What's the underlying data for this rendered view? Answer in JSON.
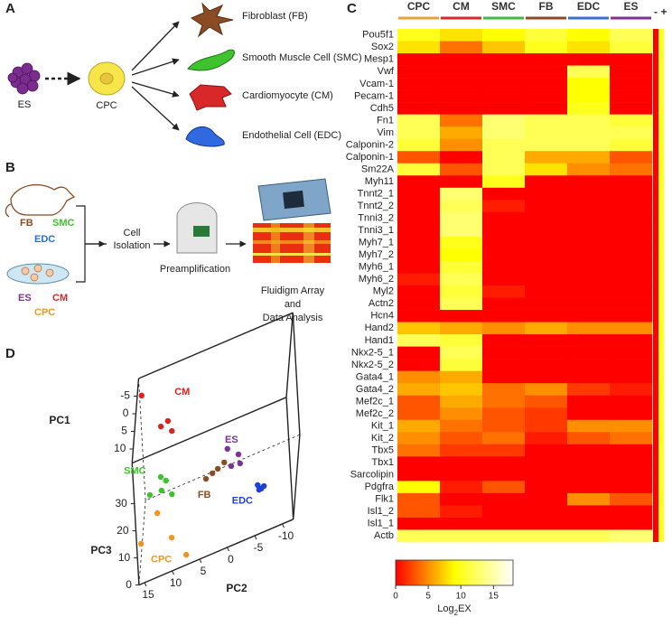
{
  "panels": {
    "a": "A",
    "b": "B",
    "c": "C",
    "d": "D"
  },
  "lineage": {
    "source": "ES",
    "progenitor": "CPC",
    "targets": [
      "Fibroblast (FB)",
      "Smooth Muscle Cell (SMC)",
      "Cardiomyocyte (CM)",
      "Endothelial Cell (EDC)"
    ]
  },
  "workflow": {
    "tissue_cells": [
      "FB",
      "SMC",
      "EDC"
    ],
    "cultured_cells": [
      "ES",
      "CM",
      "CPC"
    ],
    "step1": [
      "Cell",
      "Isolation"
    ],
    "step2": "Preamplification",
    "step3": [
      "Fluidigm Array",
      "and",
      "Data Analysis"
    ]
  },
  "chart_data": [
    {
      "type": "heatmap",
      "categories": [
        "Pou5f1",
        "Sox2",
        "Mesp1",
        "Vwf",
        "Vcam-1",
        "Pecam-1",
        "Cdh5",
        "Fn1",
        "Vim",
        "Calponin-2",
        "Calponin-1",
        "Sm22A",
        "Myh11",
        "Tnnt2_1",
        "Tnnt2_2",
        "Tnni3_2",
        "Tnni3_1",
        "Myh7_1",
        "Myh7_2",
        "Myh6_1",
        "Myh6_2",
        "Myl2",
        "Actn2",
        "Hcn4",
        "Hand2",
        "Hand1",
        "Nkx2-5_1",
        "Nkx2-5_2",
        "Gata4_1",
        "Gata4_2",
        "Mef2c_1",
        "Mef2c_2",
        "Kit_1",
        "Kit_2",
        "Tbx5",
        "Tbx1",
        "Sarcolipin",
        "Pdgfra",
        "Flk1",
        "Isl1_2",
        "Isl1_1",
        "Actb"
      ],
      "series": [
        {
          "name": "CPC",
          "color": "#e9a13b",
          "values": [
            10,
            8,
            0,
            0,
            0,
            0,
            0,
            12,
            12,
            11,
            3,
            11,
            0,
            0,
            0,
            0,
            0,
            0,
            0,
            0,
            1,
            0,
            0,
            0,
            7,
            12,
            0,
            0,
            5,
            6,
            3,
            3,
            6,
            5,
            4,
            0,
            0,
            9,
            3,
            3,
            0,
            12
          ]
        },
        {
          "name": "CM",
          "color": "#d8282a",
          "values": [
            8,
            4,
            0,
            0,
            0,
            0,
            0,
            4,
            6,
            5,
            0,
            3,
            0,
            13,
            12,
            13,
            13,
            10,
            9,
            11,
            12,
            11,
            12,
            0,
            6,
            11,
            12,
            11,
            6,
            7,
            6,
            5,
            4,
            3,
            2,
            0,
            0,
            1,
            0,
            1,
            0,
            12
          ]
        },
        {
          "name": "SMC",
          "color": "#45b649",
          "values": [
            9,
            7,
            0,
            0,
            0,
            0,
            0,
            13,
            13,
            12,
            12,
            12,
            10,
            0,
            1,
            0,
            0,
            0,
            0,
            0,
            0,
            1,
            0,
            0,
            5,
            0,
            0,
            0,
            0,
            4,
            4,
            3,
            3,
            4,
            2,
            0,
            0,
            3,
            0,
            0,
            0,
            12
          ]
        },
        {
          "name": "FB",
          "color": "#8b4b24",
          "values": [
            11,
            10,
            0,
            0,
            0,
            0,
            0,
            12,
            12,
            12,
            6,
            8,
            0,
            0,
            0,
            0,
            0,
            0,
            0,
            0,
            0,
            0,
            0,
            0,
            6,
            0,
            0,
            0,
            0,
            5,
            3,
            2,
            2,
            1,
            0,
            0,
            0,
            0,
            0,
            0,
            0,
            12
          ]
        },
        {
          "name": "EDC",
          "color": "#3a6fd0",
          "values": [
            9,
            8,
            0,
            12,
            9,
            9,
            10,
            12,
            12,
            12,
            6,
            5,
            0,
            0,
            0,
            0,
            0,
            0,
            0,
            0,
            0,
            0,
            0,
            0,
            5,
            0,
            0,
            0,
            0,
            2,
            0,
            0,
            5,
            3,
            0,
            0,
            0,
            0,
            5,
            0,
            0,
            12
          ]
        },
        {
          "name": "ES",
          "color": "#7c3393",
          "values": [
            12,
            11,
            0,
            0,
            0,
            0,
            0,
            11,
            12,
            11,
            3,
            4,
            0,
            0,
            0,
            0,
            0,
            0,
            0,
            0,
            0,
            0,
            0,
            0,
            5,
            0,
            0,
            0,
            0,
            1,
            0,
            0,
            5,
            4,
            0,
            0,
            0,
            0,
            3,
            0,
            0,
            13
          ]
        }
      ],
      "controls": [
        "-",
        "+"
      ],
      "colorscale": [
        "#ff0000",
        "#ffff00",
        "#ffffff"
      ],
      "clim": [
        0,
        18
      ],
      "cticks": [
        0,
        5,
        10,
        15
      ],
      "clabel": [
        "Log",
        "2",
        "EX"
      ]
    },
    {
      "type": "scatter3d",
      "xlabel": "PC1",
      "ylabel": "PC2",
      "zlabel": "PC3",
      "xlim": [
        -10,
        14
      ],
      "ylim": [
        -12,
        16
      ],
      "zlim": [
        0,
        45
      ],
      "xticks": [
        -5,
        0,
        5,
        10
      ],
      "yticks": [
        15,
        10,
        5,
        0,
        -5,
        -10
      ],
      "zticks": [
        0,
        10,
        20,
        30
      ],
      "series": [
        {
          "name": "CM",
          "color": "#e0201b",
          "x": [
            -6,
            -6,
            -6,
            -6
          ],
          "y": [
            15.3,
            10.9,
            12.2,
            10.3
          ],
          "z": [
            43.3,
            30.1,
            29.2,
            25.9
          ]
        },
        {
          "name": "ES",
          "color": "#7c3393",
          "x": [
            4,
            4,
            4,
            4
          ],
          "y": [
            -0.2,
            -2.1,
            -2.3,
            -0.7
          ],
          "z": [
            23.2,
            19.5,
            16.0,
            16.4
          ]
        },
        {
          "name": "SMC",
          "color": "#3ec22d",
          "x": [
            4,
            4,
            4,
            4,
            4
          ],
          "y": [
            14.0,
            11.9,
            11.0,
            11.9,
            10.1
          ],
          "z": [
            18.5,
            23.3,
            21.2,
            18.3,
            15.4
          ]
        },
        {
          "name": "FB",
          "color": "#8b4b24",
          "x": [
            4,
            4,
            4,
            4
          ],
          "y": [
            3.9,
            2.7,
            1.7,
            0.5
          ],
          "z": [
            15.7,
            16.7,
            17.5,
            18.8
          ]
        },
        {
          "name": "EDC",
          "color": "#1f3fd6",
          "x": [
            4,
            4,
            4,
            4
          ],
          "y": [
            -5.2,
            -5.8,
            -6.3,
            -5.4
          ],
          "z": [
            5.5,
            3.7,
            4.2,
            3.6
          ]
        },
        {
          "name": "CPC",
          "color": "#f0961e",
          "x": [
            12,
            12,
            12,
            12
          ],
          "y": [
            15.4,
            12.2,
            9.9,
            7.5
          ],
          "z": [
            12.1,
            20.6,
            9.6,
            1.2
          ]
        }
      ]
    }
  ]
}
